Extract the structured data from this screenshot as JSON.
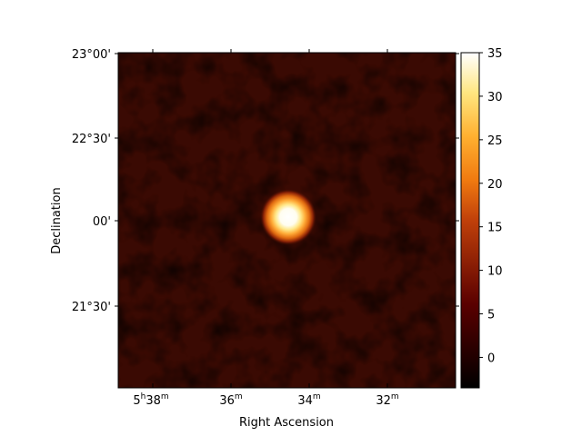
{
  "chart_data": {
    "type": "heatmap",
    "description_of_source": "sky count map with a single bright source",
    "xlabel": "Right Ascension",
    "ylabel": "Declination",
    "x_ticks": [
      {
        "label_main": "5",
        "label_sup1": "h",
        "label_mid": "38",
        "label_sup2": "m"
      },
      {
        "label_main": "36",
        "label_sup1": "m"
      },
      {
        "label_main": "34",
        "label_sup1": "m"
      },
      {
        "label_main": "32",
        "label_sup1": "m"
      }
    ],
    "y_ticks": [
      "23°00'",
      "22°30'",
      "00'",
      "21°30'"
    ],
    "colorbar": {
      "colormap": "afmhot",
      "ticks": [
        35,
        30,
        25,
        20,
        15,
        10,
        5,
        0
      ],
      "vmin": -3.5,
      "vmax": 35
    },
    "source_peak_value": 35,
    "background_level": 1.5
  }
}
